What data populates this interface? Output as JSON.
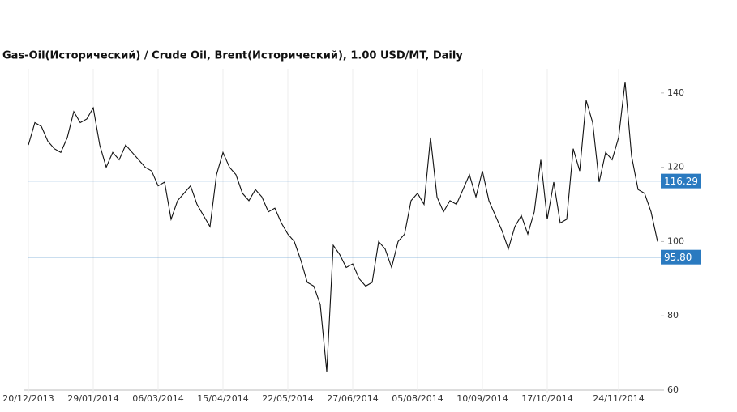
{
  "chart_data": {
    "type": "line",
    "title": "Gas-Oil(Исторический) / Crude Oil, Brent(Исторический), 1.00 USD/MT, Daily",
    "categories": [
      "20/12/2013",
      null,
      null,
      null,
      null,
      null,
      null,
      null,
      null,
      null,
      "29/01/2014",
      null,
      null,
      null,
      null,
      null,
      null,
      null,
      null,
      null,
      "06/03/2014",
      null,
      null,
      null,
      null,
      null,
      null,
      null,
      null,
      null,
      "15/04/2014",
      null,
      null,
      null,
      null,
      null,
      null,
      null,
      null,
      null,
      "22/05/2014",
      null,
      null,
      null,
      null,
      null,
      null,
      null,
      null,
      null,
      "27/06/2014",
      null,
      null,
      null,
      null,
      null,
      null,
      null,
      null,
      null,
      "05/08/2014",
      null,
      null,
      null,
      null,
      null,
      null,
      null,
      null,
      null,
      "10/09/2014",
      null,
      null,
      null,
      null,
      null,
      null,
      null,
      null,
      null,
      "17/10/2014",
      null,
      null,
      null,
      null,
      null,
      null,
      null,
      null,
      null,
      null,
      "24/11/2014",
      null,
      null,
      null,
      null,
      null,
      null
    ],
    "series": [
      {
        "color": "#111111",
        "values": [
          126,
          132,
          131,
          127,
          125,
          124,
          128,
          135,
          132,
          133,
          136,
          126,
          120,
          124,
          122,
          126,
          124,
          122,
          120,
          119,
          115,
          116,
          106,
          111,
          113,
          115,
          110,
          107,
          104,
          118,
          124,
          120,
          118,
          113,
          111,
          114,
          112,
          108,
          109,
          105,
          102,
          100,
          95,
          89,
          88,
          83,
          65,
          99,
          96.5,
          93,
          94,
          90,
          88,
          89,
          100,
          98,
          93,
          100,
          102,
          111,
          113,
          110,
          128,
          112,
          108,
          111,
          110,
          114,
          118,
          112,
          119,
          111,
          107,
          103,
          98,
          104,
          107,
          102,
          108,
          122,
          106,
          116,
          105,
          106,
          125,
          119,
          138,
          132,
          116,
          124,
          122,
          128,
          143,
          123,
          114,
          113,
          108,
          100
        ]
      }
    ],
    "ylim": [
      60,
      146.5
    ],
    "yticks": [
      60,
      80,
      100,
      120,
      140
    ],
    "levels": [
      {
        "value": 116.29,
        "color": "#2a7ac0"
      },
      {
        "value": 95.8,
        "label": "95.80",
        "color": "#2a7ac0"
      }
    ]
  }
}
